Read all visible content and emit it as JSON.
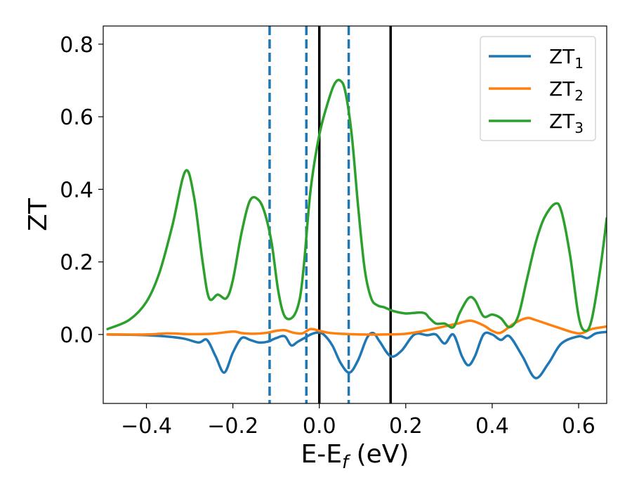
{
  "chart_data": {
    "type": "line",
    "title": "",
    "xlabel_main": "E-E",
    "xlabel_sub": "f",
    "xlabel_tail": " (eV)",
    "ylabel": "ZT",
    "xlim": [
      -0.5,
      0.665
    ],
    "ylim": [
      -0.19,
      0.85
    ],
    "xticks": [
      -0.4,
      -0.2,
      0.0,
      0.2,
      0.4,
      0.6
    ],
    "xtick_labels": [
      "−0.4",
      "−0.2",
      "0.0",
      "0.2",
      "0.4",
      "0.6"
    ],
    "yticks": [
      0.0,
      0.2,
      0.4,
      0.6,
      0.8
    ],
    "ytick_labels": [
      "0.0",
      "0.2",
      "0.4",
      "0.6",
      "0.8"
    ],
    "grid": false,
    "legend_position": "top-right",
    "vlines_dashed": [
      -0.115,
      -0.03,
      0.068
    ],
    "vlines_solid": [
      0.0,
      0.165
    ],
    "series": [
      {
        "name_main": "ZT",
        "name_sub": "1",
        "color": "#1f77b4",
        "x": [
          -0.49,
          -0.4,
          -0.32,
          -0.28,
          -0.26,
          -0.24,
          -0.22,
          -0.2,
          -0.18,
          -0.16,
          -0.14,
          -0.12,
          -0.1,
          -0.08,
          -0.065,
          -0.05,
          -0.035,
          -0.02,
          -0.005,
          0.01,
          0.03,
          0.05,
          0.07,
          0.09,
          0.11,
          0.125,
          0.14,
          0.165,
          0.19,
          0.22,
          0.25,
          0.27,
          0.29,
          0.31,
          0.33,
          0.345,
          0.36,
          0.38,
          0.4,
          0.42,
          0.44,
          0.47,
          0.5,
          0.53,
          0.56,
          0.6,
          0.62,
          0.64,
          0.665
        ],
        "y": [
          0.0,
          -0.002,
          -0.01,
          -0.022,
          -0.015,
          -0.06,
          -0.105,
          -0.05,
          -0.01,
          -0.015,
          -0.022,
          -0.02,
          -0.01,
          -0.005,
          -0.03,
          -0.02,
          -0.01,
          0.0,
          0.005,
          0.0,
          -0.03,
          -0.08,
          -0.105,
          -0.07,
          -0.01,
          0.004,
          -0.02,
          -0.06,
          -0.045,
          0.0,
          -0.002,
          0.0,
          -0.025,
          0.0,
          -0.06,
          -0.085,
          -0.06,
          0.0,
          0.0,
          -0.015,
          -0.005,
          -0.06,
          -0.12,
          -0.08,
          -0.025,
          -0.005,
          -0.01,
          0.003,
          0.007
        ]
      },
      {
        "name_main": "ZT",
        "name_sub": "2",
        "color": "#ff7f0e",
        "x": [
          -0.49,
          -0.4,
          -0.35,
          -0.3,
          -0.25,
          -0.2,
          -0.18,
          -0.15,
          -0.12,
          -0.1,
          -0.08,
          -0.06,
          -0.04,
          -0.02,
          0.0,
          0.02,
          0.05,
          0.1,
          0.15,
          0.2,
          0.25,
          0.3,
          0.32,
          0.35,
          0.38,
          0.4,
          0.42,
          0.45,
          0.48,
          0.5,
          0.55,
          0.6,
          0.63,
          0.665
        ],
        "y": [
          0.0,
          0.0,
          0.003,
          0.001,
          0.002,
          0.008,
          0.004,
          0.002,
          0.005,
          0.01,
          0.012,
          0.005,
          0.003,
          0.015,
          0.01,
          0.005,
          0.002,
          0.0,
          0.0,
          0.002,
          0.012,
          0.025,
          0.03,
          0.038,
          0.025,
          0.01,
          0.005,
          0.03,
          0.045,
          0.04,
          0.02,
          0.003,
          0.015,
          0.022
        ]
      },
      {
        "name_main": "ZT",
        "name_sub": "3",
        "color": "#2ca02c",
        "x": [
          -0.49,
          -0.44,
          -0.4,
          -0.37,
          -0.34,
          -0.31,
          -0.29,
          -0.27,
          -0.255,
          -0.235,
          -0.215,
          -0.2,
          -0.18,
          -0.16,
          -0.14,
          -0.125,
          -0.11,
          -0.095,
          -0.08,
          -0.06,
          -0.045,
          -0.035,
          -0.02,
          0.0,
          0.02,
          0.035,
          0.048,
          0.06,
          0.075,
          0.09,
          0.105,
          0.12,
          0.135,
          0.15,
          0.17,
          0.2,
          0.24,
          0.255,
          0.27,
          0.29,
          0.31,
          0.325,
          0.345,
          0.36,
          0.38,
          0.4,
          0.42,
          0.44,
          0.46,
          0.48,
          0.5,
          0.52,
          0.545,
          0.56,
          0.58,
          0.6,
          0.615,
          0.63,
          0.65,
          0.665
        ],
        "y": [
          0.015,
          0.04,
          0.09,
          0.17,
          0.3,
          0.45,
          0.38,
          0.2,
          0.1,
          0.11,
          0.1,
          0.15,
          0.28,
          0.37,
          0.37,
          0.33,
          0.25,
          0.12,
          0.05,
          0.05,
          0.1,
          0.2,
          0.4,
          0.55,
          0.64,
          0.69,
          0.7,
          0.67,
          0.55,
          0.35,
          0.18,
          0.1,
          0.08,
          0.075,
          0.065,
          0.058,
          0.06,
          0.045,
          0.03,
          0.03,
          0.02,
          0.06,
          0.1,
          0.095,
          0.05,
          0.055,
          0.045,
          0.02,
          0.05,
          0.15,
          0.25,
          0.32,
          0.36,
          0.34,
          0.22,
          0.05,
          0.01,
          0.04,
          0.18,
          0.32
        ]
      }
    ]
  }
}
